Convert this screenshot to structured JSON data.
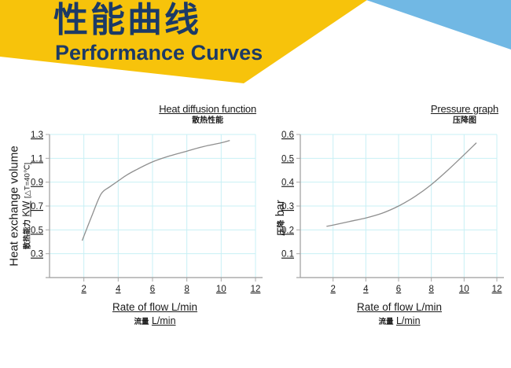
{
  "header": {
    "title_zh": "性能曲线",
    "title_en": "Performance Curves",
    "colors": {
      "banner_yellow": "#F7C30B",
      "banner_blue": "#71B8E4",
      "title_navy": "#1C3A66"
    }
  },
  "styles": {
    "grid_color": "#C8F0F5",
    "axis_color": "#9C9C9C",
    "tick_color": "#A8A8A8",
    "curve_color": "#8F8F8F",
    "text_color": "#1A1A1A"
  },
  "chart_data": [
    {
      "type": "line",
      "title": "Heat diffusion function",
      "subtitle_zh": "散热性能",
      "xlabel": "Rate of flow L/min",
      "xlabel_zh": "流量",
      "xlabel_zh_unit": "L/min",
      "ylabel_line1": "Heat exchange volume",
      "ylabel_line2_zh": "散热能力",
      "ylabel_line2_unit": "KW",
      "ylabel_line2_suffix": "[△T=40℃]",
      "xlim": [
        0,
        12
      ],
      "ylim": [
        0.1,
        1.3
      ],
      "xticks": [
        2,
        4,
        6,
        8,
        10,
        12
      ],
      "yticks": [
        0.3,
        0.5,
        0.7,
        0.9,
        1.1,
        1.3
      ],
      "grid": true,
      "legend": false,
      "series": [
        {
          "name": "heat-exchange-curve",
          "x": [
            1.9,
            2.2,
            2.5,
            3,
            3.5,
            4,
            4.5,
            5,
            6,
            7,
            8,
            9,
            10,
            10.5
          ],
          "y": [
            0.41,
            0.52,
            0.63,
            0.8,
            0.86,
            0.91,
            0.96,
            1.0,
            1.07,
            1.12,
            1.16,
            1.2,
            1.23,
            1.25
          ]
        }
      ]
    },
    {
      "type": "line",
      "title": "Pressure graph",
      "subtitle_zh": "压降图",
      "xlabel": "Rate of flow L/min",
      "xlabel_zh": "流量",
      "xlabel_zh_unit": "L/min",
      "ylabel_zh": "压降",
      "ylabel_unit": "bar",
      "xlim": [
        0,
        12
      ],
      "ylim": [
        0,
        0.6
      ],
      "xticks": [
        2,
        4,
        6,
        8,
        10,
        12
      ],
      "yticks": [
        0.1,
        0.2,
        0.3,
        0.4,
        0.5,
        0.6
      ],
      "grid": true,
      "legend": false,
      "series": [
        {
          "name": "pressure-drop-curve",
          "x": [
            1.6,
            2,
            3,
            4,
            5,
            6,
            7,
            8,
            9,
            10,
            10.75
          ],
          "y": [
            0.215,
            0.22,
            0.235,
            0.25,
            0.27,
            0.3,
            0.34,
            0.39,
            0.45,
            0.515,
            0.565
          ]
        }
      ]
    }
  ]
}
